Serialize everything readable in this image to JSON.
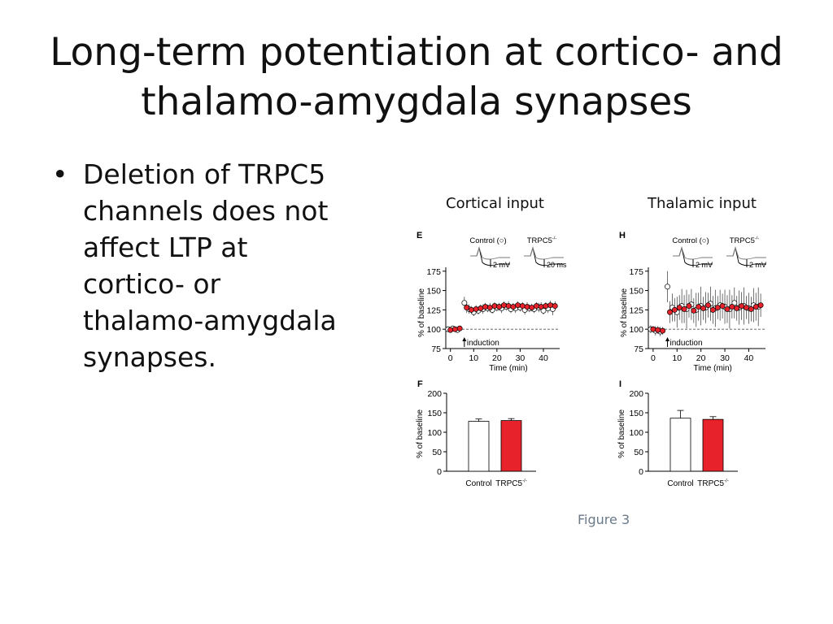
{
  "slide": {
    "title": "Long-term potentiation at cortico- and thalamo-amygdala synapses",
    "bullet_symbol": "•",
    "bullet_text": "Deletion of TRPC5 channels does not affect LTP at cortico- or thalamo-amygdala synapses.",
    "caption": "Figure 3"
  },
  "panel_headers": [
    "Cortical input",
    "Thalamic input"
  ],
  "colors": {
    "control": "#ffffff",
    "trpc5": "#e8222a",
    "axis": "#000000"
  },
  "chart_data": [
    {
      "type": "scatter",
      "panel": "E",
      "legend": [
        "Control (○)",
        "TRPC5-/- (●)"
      ],
      "trace_scale": [
        "2 mV",
        "20 ms"
      ],
      "annotation": "induction",
      "xlabel": "Time (min)",
      "ylabel": "% of baseline",
      "xticks": [
        0,
        10,
        20,
        30,
        40
      ],
      "yticks": [
        75,
        100,
        125,
        150,
        175
      ],
      "xlim": [
        -2,
        47
      ],
      "ylim": [
        75,
        180
      ],
      "baseline": 100,
      "series": [
        {
          "name": "Control",
          "x": [
            -1,
            1,
            3,
            6,
            8,
            10,
            12,
            14,
            16,
            18,
            20,
            22,
            24,
            26,
            28,
            30,
            32,
            34,
            36,
            38,
            40,
            42,
            44
          ],
          "y": [
            100,
            101,
            99,
            134,
            126,
            122,
            124,
            126,
            127,
            125,
            128,
            127,
            129,
            126,
            127,
            128,
            125,
            127,
            126,
            128,
            124,
            127,
            126
          ],
          "err": [
            2,
            2,
            2,
            8,
            6,
            5,
            5,
            6,
            5,
            5,
            5,
            6,
            5,
            5,
            6,
            5,
            6,
            5,
            5,
            6,
            5,
            6,
            8
          ]
        },
        {
          "name": "TRPC5-/-",
          "x": [
            0,
            2,
            4,
            7,
            9,
            11,
            13,
            15,
            17,
            19,
            21,
            23,
            25,
            27,
            29,
            31,
            33,
            35,
            37,
            39,
            41,
            43,
            45
          ],
          "y": [
            99,
            100,
            101,
            128,
            125,
            126,
            127,
            129,
            128,
            130,
            129,
            131,
            130,
            129,
            131,
            130,
            129,
            128,
            130,
            129,
            130,
            131,
            130
          ],
          "err": [
            2,
            2,
            2,
            7,
            5,
            5,
            5,
            5,
            6,
            5,
            5,
            5,
            6,
            5,
            5,
            5,
            6,
            5,
            5,
            6,
            5,
            6,
            6
          ]
        }
      ]
    },
    {
      "type": "scatter",
      "panel": "H",
      "legend": [
        "Control (○)",
        "TRPC5-/- (●)"
      ],
      "trace_scale": [
        "2 mV",
        "2 mV"
      ],
      "annotation": "induction",
      "xlabel": "Time (min)",
      "ylabel": "% of baseline",
      "xticks": [
        0,
        10,
        20,
        30,
        40
      ],
      "yticks": [
        75,
        100,
        125,
        150,
        175
      ],
      "xlim": [
        -2,
        47
      ],
      "ylim": [
        75,
        180
      ],
      "baseline": 100,
      "series": [
        {
          "name": "Control",
          "x": [
            -1,
            1,
            3,
            6,
            8,
            10,
            12,
            14,
            16,
            18,
            20,
            22,
            24,
            26,
            28,
            30,
            32,
            34,
            36,
            38,
            40,
            42,
            44
          ],
          "y": [
            100,
            98,
            97,
            155,
            128,
            122,
            130,
            126,
            132,
            125,
            130,
            128,
            133,
            127,
            131,
            129,
            126,
            134,
            128,
            130,
            127,
            131,
            129
          ],
          "err": [
            5,
            6,
            6,
            20,
            18,
            20,
            22,
            25,
            20,
            22,
            25,
            20,
            22,
            24,
            20,
            22,
            25,
            20,
            22,
            24,
            20,
            22,
            25
          ]
        },
        {
          "name": "TRPC5-/-",
          "x": [
            0,
            2,
            4,
            7,
            9,
            11,
            13,
            15,
            17,
            19,
            21,
            23,
            25,
            27,
            29,
            31,
            33,
            35,
            37,
            39,
            41,
            43,
            45
          ],
          "y": [
            100,
            99,
            98,
            122,
            125,
            128,
            126,
            130,
            124,
            129,
            127,
            131,
            125,
            128,
            130,
            126,
            129,
            127,
            130,
            128,
            126,
            129,
            131
          ],
          "err": [
            4,
            5,
            5,
            14,
            15,
            16,
            18,
            15,
            16,
            18,
            15,
            16,
            18,
            15,
            16,
            18,
            15,
            16,
            18,
            15,
            16,
            18,
            15
          ]
        }
      ]
    },
    {
      "type": "bar",
      "panel": "F",
      "categories": [
        "Control",
        "TRPC5-/-"
      ],
      "values": [
        128,
        130
      ],
      "err": [
        6,
        5
      ],
      "ylabel": "% of baseline",
      "yticks": [
        0,
        50,
        100,
        150,
        200
      ],
      "ylim": [
        0,
        200
      ]
    },
    {
      "type": "bar",
      "panel": "I",
      "categories": [
        "Control",
        "TRPC5-/-"
      ],
      "values": [
        136,
        133
      ],
      "err": [
        20,
        7
      ],
      "ylabel": "% of baseline",
      "yticks": [
        0,
        50,
        100,
        150,
        200
      ],
      "ylim": [
        0,
        200
      ]
    }
  ]
}
